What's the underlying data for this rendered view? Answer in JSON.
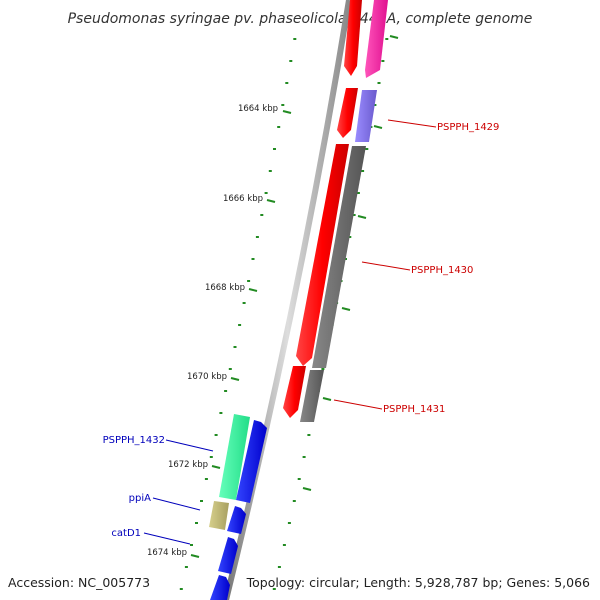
{
  "title": "Pseudomonas syringae pv. phaseolicola 1448A, complete genome",
  "footer": {
    "accession": "Accession: NC_005773",
    "topology": "Topology: circular; Length: 5,928,787 bp; Genes: 5,066"
  },
  "scale_labels": [
    "1664 kbp",
    "1666 kbp",
    "1668 kbp",
    "1670 kbp",
    "1672 kbp",
    "1674 kbp"
  ],
  "genes": [
    {
      "label": "PSPPH_1429",
      "color": "#cc0000",
      "strand": "forward"
    },
    {
      "label": "PSPPH_1430",
      "color": "#cc0000",
      "strand": "forward"
    },
    {
      "label": "PSPPH_1431",
      "color": "#cc0000",
      "strand": "forward"
    },
    {
      "label": "PSPPH_1432",
      "color": "#0000bb",
      "strand": "reverse"
    },
    {
      "label": "ppiA",
      "color": "#0000bb",
      "strand": "reverse"
    },
    {
      "label": "catD1",
      "color": "#0000bb",
      "strand": "reverse"
    }
  ],
  "colors": {
    "forward_cds": "#ff0000",
    "reverse_cds": "#0000ff",
    "backbone": "#999999",
    "tick": "#228B22",
    "pink_feature": "#ff1493",
    "purple_feature": "#7b68ee",
    "grey_feature": "#666666",
    "teal_feature": "#33ee99",
    "khaki_feature": "#bdb76b"
  }
}
